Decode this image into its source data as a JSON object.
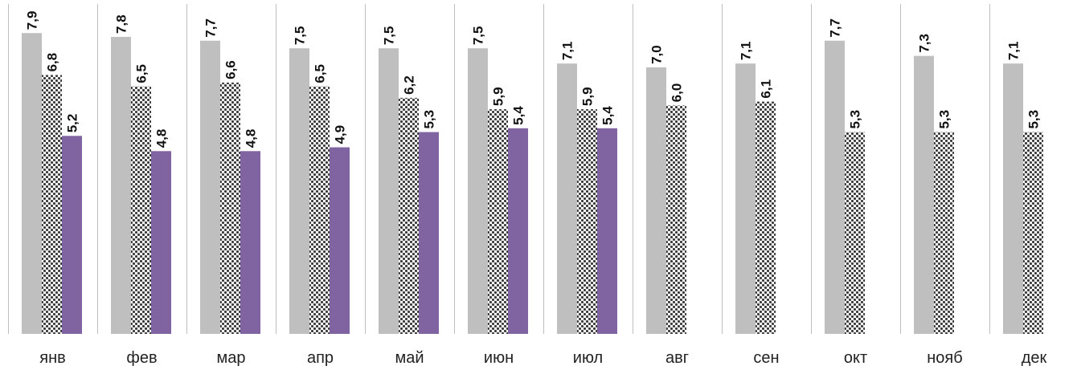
{
  "chart_data": {
    "type": "bar",
    "categories": [
      "янв",
      "фев",
      "мар",
      "апр",
      "май",
      "июн",
      "июл",
      "авг",
      "сен",
      "окт",
      "нояб",
      "дек"
    ],
    "series": [
      {
        "values": [
          7.9,
          7.8,
          7.7,
          7.5,
          7.5,
          7.5,
          7.1,
          7.0,
          7.1,
          7.7,
          7.3,
          7.1
        ],
        "labels": [
          "7,9",
          "7,8",
          "7,7",
          "7,5",
          "7,5",
          "7,5",
          "7,1",
          "7,0",
          "7,1",
          "7,7",
          "7,3",
          "7,1"
        ],
        "color": "#bfbfbf",
        "fill": "solid"
      },
      {
        "values": [
          6.8,
          6.5,
          6.6,
          6.5,
          6.2,
          5.9,
          5.9,
          6.0,
          6.1,
          5.3,
          5.3,
          5.3
        ],
        "labels": [
          "6,8",
          "6,5",
          "6,6",
          "6,5",
          "6,2",
          "5,9",
          "5,9",
          "6,0",
          "6,1",
          "5,3",
          "5,3",
          "5,3"
        ],
        "color": "#3a3a3a",
        "fill": "checker-pattern"
      },
      {
        "values": [
          5.2,
          4.8,
          4.8,
          4.9,
          5.3,
          5.4,
          5.4,
          null,
          null,
          null,
          null,
          null
        ],
        "labels": [
          "5,2",
          "4,8",
          "4,8",
          "4,9",
          "5,3",
          "5,4",
          "5,4",
          "",
          "",
          "",
          "",
          ""
        ],
        "color": "#8064a2",
        "fill": "solid"
      }
    ],
    "ylim": [
      0,
      8.6
    ],
    "grid": false,
    "legend": "none"
  }
}
